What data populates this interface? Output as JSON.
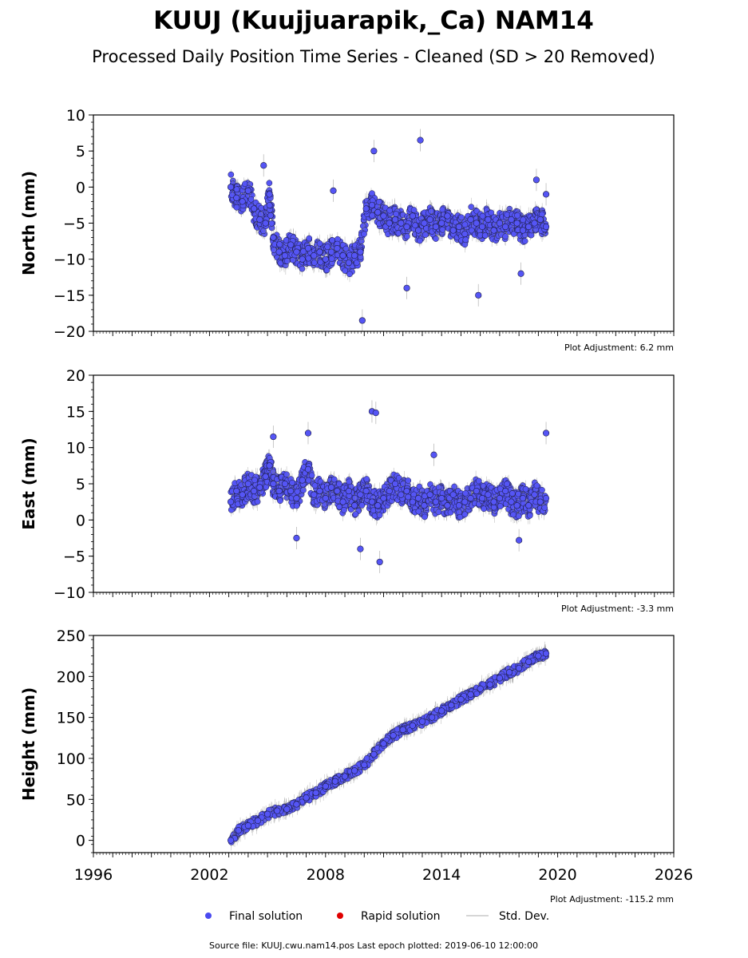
{
  "figure": {
    "title": "KUUJ (Kuujjuarapik,_Ca) NAM14",
    "subtitle": "Processed Daily Position Time Series - Cleaned (SD > 20 Removed)",
    "source_note": "Source file: KUUJ.cwu.nam14.pos  Last epoch plotted: 2019-06-10 12:00:00"
  },
  "legend": {
    "placement": "bottom-center",
    "items": [
      {
        "label": "Final solution",
        "color": "#4a4af0"
      },
      {
        "label": "Rapid solution",
        "color": "#e00000"
      },
      {
        "label": "Std. Dev.",
        "color": "#c8c8c8"
      }
    ]
  },
  "colors": {
    "marker_fill": "#5555f5",
    "marker_edge": "#1a1a40",
    "errorbar": "#8c8c8c",
    "axis": "#000000"
  },
  "chart_data": [
    {
      "type": "scatter",
      "ylabel": "North (mm)",
      "xlim": [
        1996,
        2026
      ],
      "ylim": [
        -20,
        10
      ],
      "yticks": [
        10,
        5,
        0,
        -5,
        -10,
        -15,
        -20
      ],
      "ytick_labels": [
        "10",
        "5",
        "0",
        "−5",
        "−10",
        "−15",
        "−20"
      ],
      "adjustment": "Plot Adjustment: 6.2 mm",
      "grid": false,
      "series": [
        {
          "name": "Final solution",
          "x": [
            2003.1,
            2003.4,
            2003.7,
            2004.0,
            2004.3,
            2004.6,
            2004.9,
            2005.1,
            2005.3,
            2005.6,
            2005.9,
            2006.2,
            2006.5,
            2006.8,
            2007.1,
            2007.4,
            2007.7,
            2008.0,
            2008.3,
            2008.6,
            2008.9,
            2009.2,
            2009.5,
            2009.8,
            2010.1,
            2010.4,
            2010.7,
            2011.0,
            2011.3,
            2011.6,
            2011.9,
            2012.2,
            2012.5,
            2012.8,
            2013.1,
            2013.4,
            2013.7,
            2014.0,
            2014.3,
            2014.6,
            2014.9,
            2015.2,
            2015.5,
            2015.8,
            2016.1,
            2016.4,
            2016.7,
            2017.0,
            2017.3,
            2017.6,
            2017.9,
            2018.2,
            2018.5,
            2018.8,
            2019.1,
            2019.4
          ],
          "y": [
            0.0,
            -1.5,
            -2.0,
            -0.5,
            -3.0,
            -4.5,
            -5.0,
            -1.0,
            -7.0,
            -9.0,
            -9.5,
            -8.0,
            -9.0,
            -10.0,
            -8.5,
            -9.5,
            -9.0,
            -10.0,
            -9.0,
            -8.5,
            -9.5,
            -10.5,
            -9.5,
            -9.0,
            -3.0,
            -2.5,
            -3.5,
            -4.0,
            -5.0,
            -4.5,
            -5.0,
            -5.5,
            -4.0,
            -6.0,
            -5.0,
            -4.5,
            -5.5,
            -5.0,
            -4.0,
            -6.0,
            -5.5,
            -6.5,
            -4.5,
            -5.0,
            -5.5,
            -4.5,
            -6.0,
            -5.0,
            -5.5,
            -4.5,
            -5.0,
            -6.0,
            -5.5,
            -5.0,
            -4.5,
            -5.5
          ]
        }
      ],
      "outliers": {
        "x": [
          2009.9,
          2012.9,
          2015.9,
          2018.1,
          2010.5,
          2004.8,
          2008.4,
          2012.2,
          2018.9,
          2019.4
        ],
        "y": [
          -18.5,
          6.5,
          -15.0,
          -12.0,
          5.0,
          3.0,
          -0.5,
          -14.0,
          1.0,
          -1.0
        ]
      }
    },
    {
      "type": "scatter",
      "ylabel": "East (mm)",
      "xlim": [
        1996,
        2026
      ],
      "ylim": [
        -10,
        20
      ],
      "yticks": [
        20,
        15,
        10,
        5,
        0,
        -5,
        -10
      ],
      "ytick_labels": [
        "20",
        "15",
        "10",
        "5",
        "0",
        "−5",
        "−10"
      ],
      "adjustment": "Plot Adjustment: -3.3 mm",
      "grid": false,
      "series": [
        {
          "name": "Final solution",
          "x": [
            2003.1,
            2003.4,
            2003.7,
            2004.0,
            2004.3,
            2004.6,
            2004.9,
            2005.1,
            2005.3,
            2005.6,
            2005.9,
            2006.2,
            2006.5,
            2006.8,
            2007.1,
            2007.4,
            2007.7,
            2008.0,
            2008.3,
            2008.6,
            2008.9,
            2009.2,
            2009.5,
            2009.8,
            2010.1,
            2010.4,
            2010.7,
            2011.0,
            2011.3,
            2011.6,
            2011.9,
            2012.2,
            2012.5,
            2012.8,
            2013.1,
            2013.4,
            2013.7,
            2014.0,
            2014.3,
            2014.6,
            2014.9,
            2015.2,
            2015.5,
            2015.8,
            2016.1,
            2016.4,
            2016.7,
            2017.0,
            2017.3,
            2017.6,
            2017.9,
            2018.2,
            2018.5,
            2018.8,
            2019.1,
            2019.4
          ],
          "y": [
            2.5,
            4.0,
            3.5,
            5.0,
            4.0,
            4.5,
            6.0,
            7.5,
            5.0,
            4.0,
            5.0,
            4.0,
            3.0,
            5.5,
            7.0,
            3.5,
            4.0,
            3.0,
            4.5,
            4.0,
            2.5,
            4.0,
            2.0,
            3.5,
            4.0,
            2.5,
            2.0,
            3.0,
            4.0,
            5.0,
            3.5,
            4.0,
            2.5,
            3.0,
            2.0,
            3.5,
            2.5,
            3.0,
            2.0,
            3.5,
            2.0,
            2.5,
            3.0,
            4.0,
            3.0,
            3.5,
            2.5,
            3.0,
            4.0,
            2.5,
            2.0,
            3.0,
            2.0,
            3.5,
            2.5,
            3.0
          ]
        }
      ],
      "outliers": {
        "x": [
          2010.4,
          2010.6,
          2010.8,
          2019.4,
          2005.3,
          2007.1,
          2009.8,
          2006.5,
          2013.6,
          2018.0
        ],
        "y": [
          15.0,
          14.8,
          -5.8,
          12.0,
          11.5,
          12.0,
          -4.0,
          -2.5,
          9.0,
          -2.8
        ]
      }
    },
    {
      "type": "scatter",
      "ylabel": "Height (mm)",
      "xlim": [
        1996,
        2026
      ],
      "ylim": [
        -15,
        250
      ],
      "yticks": [
        250,
        200,
        150,
        100,
        50,
        0
      ],
      "ytick_labels": [
        "250",
        "200",
        "150",
        "100",
        "50",
        "0"
      ],
      "xticks": [
        1996,
        2002,
        2008,
        2014,
        2020,
        2026
      ],
      "xtick_labels": [
        "1996",
        "2002",
        "2008",
        "2014",
        "2020",
        "2026"
      ],
      "adjustment": "Plot Adjustment: -115.2 mm",
      "grid": false,
      "series": [
        {
          "name": "Final solution",
          "x": [
            2003.1,
            2003.5,
            2004.0,
            2004.5,
            2005.0,
            2005.5,
            2006.0,
            2006.5,
            2007.0,
            2007.5,
            2008.0,
            2008.5,
            2009.0,
            2009.5,
            2010.0,
            2010.5,
            2011.0,
            2011.5,
            2012.0,
            2012.5,
            2013.0,
            2013.5,
            2014.0,
            2014.5,
            2015.0,
            2015.5,
            2016.0,
            2016.5,
            2017.0,
            2017.5,
            2018.0,
            2018.5,
            2019.0,
            2019.4
          ],
          "y": [
            0,
            12,
            18,
            24,
            32,
            36,
            38,
            44,
            52,
            58,
            66,
            72,
            78,
            85,
            92,
            105,
            118,
            128,
            135,
            140,
            145,
            150,
            158,
            165,
            172,
            178,
            185,
            190,
            198,
            205,
            210,
            218,
            225,
            228
          ]
        }
      ]
    }
  ]
}
